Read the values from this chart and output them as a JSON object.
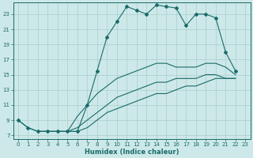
{
  "xlabel": "Humidex (Indice chaleur)",
  "bg_color": "#cde8e8",
  "grid_color": "#aacece",
  "line_color": "#1a6b6b",
  "xlim": [
    -0.5,
    23.5
  ],
  "ylim": [
    6.5,
    24.5
  ],
  "yticks": [
    7,
    9,
    11,
    13,
    15,
    17,
    19,
    21,
    23
  ],
  "xticks": [
    0,
    1,
    2,
    3,
    4,
    5,
    6,
    7,
    8,
    9,
    10,
    11,
    12,
    13,
    14,
    15,
    16,
    17,
    18,
    19,
    20,
    21,
    22,
    23
  ],
  "line1_x": [
    0,
    1,
    2,
    3,
    4,
    5,
    6,
    7,
    8,
    9,
    10,
    11,
    12,
    13,
    14,
    15,
    16,
    17,
    18,
    19,
    20,
    21,
    22
  ],
  "line1_y": [
    9,
    8,
    7.5,
    7.5,
    7.5,
    7.5,
    7.5,
    11,
    15.5,
    20,
    22,
    24,
    23.5,
    23,
    24.2,
    24,
    23.8,
    21.5,
    23,
    23,
    22.5,
    18,
    15.5
  ],
  "line2_x": [
    0,
    1,
    2,
    3,
    4,
    5,
    6,
    7,
    8,
    9,
    10,
    11,
    12,
    13,
    14,
    15,
    16,
    17,
    18,
    19,
    20,
    21,
    22
  ],
  "line2_y": [
    9,
    8,
    7.5,
    7.5,
    7.5,
    7.5,
    9.5,
    11.0,
    12.5,
    13.5,
    14.5,
    15.0,
    15.5,
    16.0,
    16.5,
    16.5,
    16.0,
    16.0,
    16.0,
    16.5,
    16.5,
    16.0,
    15.0
  ],
  "line3_x": [
    2,
    3,
    4,
    5,
    6,
    7,
    8,
    9,
    10,
    11,
    12,
    13,
    14,
    15,
    16,
    17,
    18,
    19,
    20,
    21,
    22
  ],
  "line3_y": [
    7.5,
    7.5,
    7.5,
    7.5,
    8.0,
    9.0,
    10.0,
    11.0,
    12.0,
    12.5,
    13.0,
    13.5,
    14.0,
    14.0,
    14.5,
    14.5,
    14.5,
    15.0,
    15.0,
    14.5,
    14.5
  ],
  "line4_x": [
    2,
    3,
    4,
    5,
    6,
    7,
    8,
    9,
    10,
    11,
    12,
    13,
    14,
    15,
    16,
    17,
    18,
    19,
    20,
    21,
    22
  ],
  "line4_y": [
    7.5,
    7.5,
    7.5,
    7.5,
    7.5,
    8.0,
    9.0,
    10.0,
    10.5,
    11.0,
    11.5,
    12.0,
    12.5,
    12.5,
    13.0,
    13.5,
    13.5,
    14.0,
    14.5,
    14.5,
    14.5
  ]
}
